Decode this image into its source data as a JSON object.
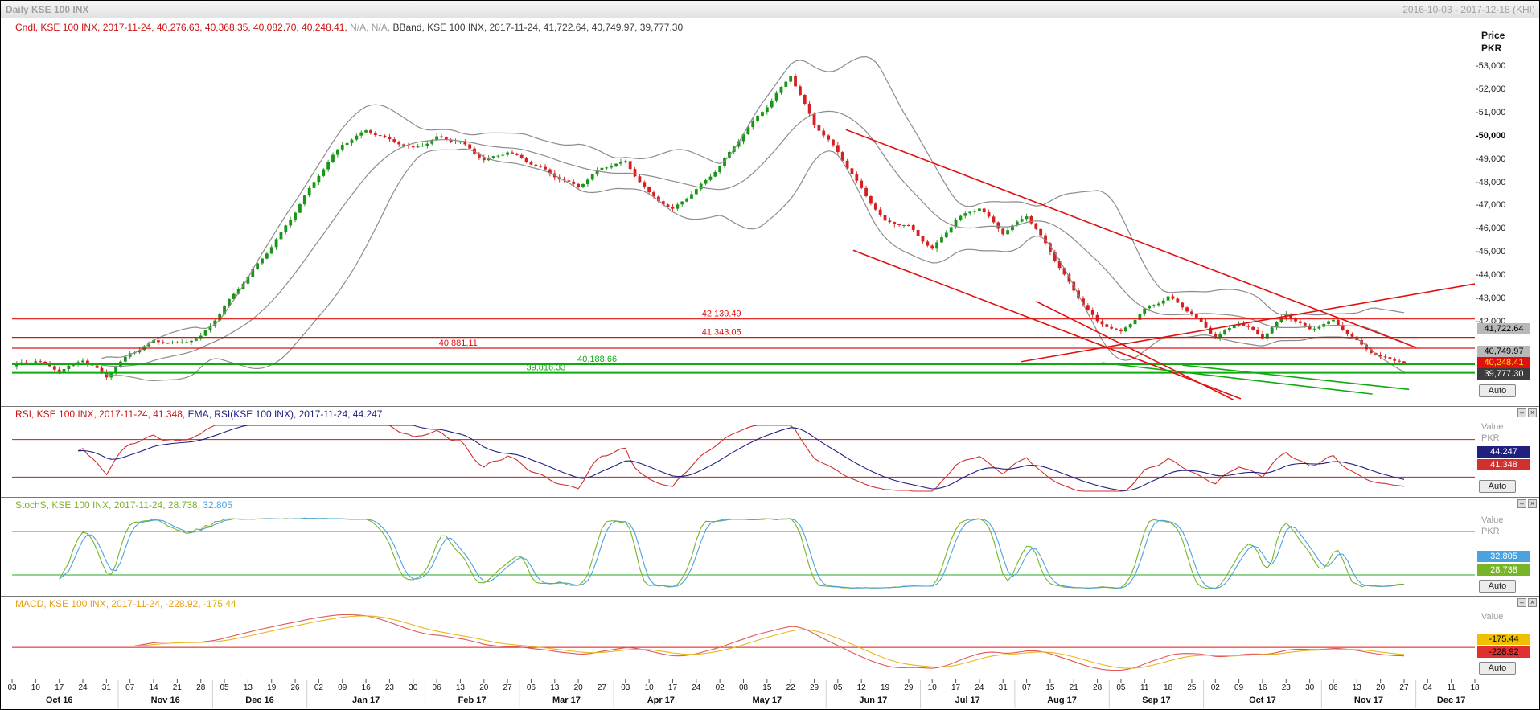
{
  "window": {
    "title": "Daily KSE 100 INX",
    "date_range": "2016-10-03 - 2017-12-18 (KHI)"
  },
  "sidebar": {
    "price_label": "Price",
    "unit_label": "PKR",
    "value_label": "Value",
    "auto_label": "Auto",
    "main_badges": [
      {
        "text": "41,722.64",
        "bg": "#b8b8b8",
        "fg": "#000000"
      },
      {
        "text": "40,749.97",
        "bg": "#b8b8b8",
        "fg": "#000000"
      },
      {
        "text": "40,248.41",
        "bg": "#e01010",
        "fg": "#ffe000"
      },
      {
        "text": "39,777.30",
        "bg": "#3c3c3c",
        "fg": "#ffffff"
      }
    ],
    "rsi_badges": [
      {
        "text": "44.247",
        "bg": "#202080",
        "fg": "#ffffff"
      },
      {
        "text": "41.348",
        "bg": "#d03030",
        "fg": "#ffffff"
      }
    ],
    "stoch_badges": [
      {
        "text": "32.805",
        "bg": "#4aa3e0",
        "fg": "#ffffff"
      },
      {
        "text": "28.738",
        "bg": "#78b428",
        "fg": "#ffffff"
      }
    ],
    "macd_badges": [
      {
        "text": "-175.44",
        "bg": "#f0c000",
        "fg": "#000000"
      },
      {
        "text": "-228.92",
        "bg": "#e03030",
        "fg": "#000000"
      }
    ],
    "minimize_icon": "–",
    "close_icon": "×"
  },
  "panels": {
    "main": {
      "legend_parts": [
        {
          "text": "Cndl, KSE 100 INX, 2017-11-24, 40,276.63, 40,368.35, 40,082.70, 40,248.41, ",
          "color": "#cc1414"
        },
        {
          "text": "N/A, N/A, ",
          "color": "#9a9a9a"
        },
        {
          "text": "BBand, KSE 100 INX, 2017-11-24, 41,722.64, 40,749.97, 39,777.30",
          "color": "#3c3c3c"
        }
      ]
    },
    "rsi": {
      "legend_parts": [
        {
          "text": "RSI, KSE 100 INX, 2017-11-24, 41.348, ",
          "color": "#cc1414"
        },
        {
          "text": "EMA, RSI(KSE 100 INX), 2017-11-24, 44.247",
          "color": "#202080"
        }
      ]
    },
    "stoch": {
      "legend_parts": [
        {
          "text": "StochS, KSE 100 INX, 2017-11-24, 28.738, ",
          "color": "#78b428"
        },
        {
          "text": "32.805",
          "color": "#4aa3e0"
        }
      ]
    },
    "macd": {
      "legend_parts": [
        {
          "text": "MACD, KSE 100 INX, 2017-11-24, -228.92, ",
          "color": "#e8a020"
        },
        {
          "text": "-175.44",
          "color": "#d8b400"
        }
      ]
    }
  },
  "xaxis": {
    "day_ticks": [
      "03",
      "10",
      "17",
      "24",
      "31",
      "07",
      "14",
      "21",
      "28",
      "05",
      "13",
      "19",
      "26",
      "02",
      "09",
      "16",
      "23",
      "30",
      "06",
      "13",
      "20",
      "27",
      "06",
      "13",
      "20",
      "27",
      "03",
      "10",
      "17",
      "24",
      "02",
      "08",
      "15",
      "22",
      "29",
      "05",
      "12",
      "19",
      "29",
      "10",
      "17",
      "24",
      "31",
      "07",
      "15",
      "21",
      "28",
      "05",
      "11",
      "18",
      "25",
      "02",
      "09",
      "16",
      "23",
      "30",
      "06",
      "13",
      "20",
      "27",
      "04",
      "11",
      "18"
    ],
    "months": [
      {
        "label": "Oct 16",
        "start": 0,
        "end": 4
      },
      {
        "label": "Nov 16",
        "start": 5,
        "end": 8
      },
      {
        "label": "Dec 16",
        "start": 9,
        "end": 12
      },
      {
        "label": "Jan 17",
        "start": 13,
        "end": 17
      },
      {
        "label": "Feb 17",
        "start": 18,
        "end": 21
      },
      {
        "label": "Mar 17",
        "start": 22,
        "end": 25
      },
      {
        "label": "Apr 17",
        "start": 26,
        "end": 29
      },
      {
        "label": "May 17",
        "start": 30,
        "end": 34
      },
      {
        "label": "Jun 17",
        "start": 35,
        "end": 38
      },
      {
        "label": "Jul 17",
        "start": 39,
        "end": 42
      },
      {
        "label": "Aug 17",
        "start": 43,
        "end": 46
      },
      {
        "label": "Sep 17",
        "start": 47,
        "end": 50
      },
      {
        "label": "Oct 17",
        "start": 51,
        "end": 55
      },
      {
        "label": "Nov 17",
        "start": 56,
        "end": 59
      },
      {
        "label": "Dec 17",
        "start": 60,
        "end": 62
      }
    ]
  },
  "chart_data": [
    {
      "type": "candlestick",
      "panel": "main",
      "title": "Cndl, KSE 100 INX",
      "interval": "Daily",
      "last_date": "2017-11-24",
      "last_ohlc": {
        "open": 40276.63,
        "high": 40368.35,
        "low": 40082.7,
        "close": 40248.41
      },
      "bband_last": {
        "upper": 41722.64,
        "mid": 40749.97,
        "lower": 39777.3
      },
      "ylim": [
        38800,
        54400
      ],
      "yticks": [
        {
          "v": 53000,
          "label": "53,000"
        },
        {
          "v": 52000,
          "label": "52,000"
        },
        {
          "v": 51000,
          "label": "51,000"
        },
        {
          "v": 50000,
          "label": "50,000",
          "bold": true
        },
        {
          "v": 49000,
          "label": "49,000"
        },
        {
          "v": 48000,
          "label": "48,000"
        },
        {
          "v": 47000,
          "label": "47,000"
        },
        {
          "v": 46000,
          "label": "46,000"
        },
        {
          "v": 45000,
          "label": "45,000"
        },
        {
          "v": 44000,
          "label": "44,000"
        },
        {
          "v": 43000,
          "label": "43,000"
        },
        {
          "v": 42000,
          "label": "42,000"
        }
      ],
      "weekly_closes": [
        40100,
        40300,
        39950,
        40400,
        39600,
        40700,
        41200,
        41000,
        41400,
        42700,
        43900,
        45300,
        46800,
        48300,
        49700,
        50300,
        49800,
        49500,
        50000,
        49700,
        49000,
        49400,
        48800,
        48300,
        47900,
        48600,
        48900,
        47600,
        46800,
        47700,
        48800,
        50100,
        51300,
        52700,
        50500,
        49300,
        47800,
        46300,
        46100,
        45200,
        46400,
        46900,
        45900,
        46600,
        45000,
        43400,
        42000,
        41500,
        42600,
        43100,
        42300,
        41400,
        42000,
        41300,
        42400,
        41700,
        42000,
        41200,
        40500,
        40248
      ],
      "hlines": [
        {
          "value": 42139.49,
          "label": "42,139.49",
          "color": "#e01010",
          "label_x": 0.485,
          "width": 1.2
        },
        {
          "value": 41343.05,
          "label": "41,343.05",
          "color": "#e01010",
          "label_x": 0.485,
          "width": 1.2
        },
        {
          "value": 40881.11,
          "label": "40,881.11",
          "color": "#e01010",
          "label_x": 0.305,
          "width": 1.2
        },
        {
          "value": 40188.66,
          "label": "40,188.66",
          "color": "#0faa0f",
          "label_x": 0.4,
          "width": 2
        },
        {
          "value": 39816.33,
          "label": "39,816.33",
          "color": "#0faa0f",
          "label_x": 0.365,
          "width": 2
        }
      ],
      "trendlines": [
        {
          "x1": 0.57,
          "v1": 50300,
          "x2": 0.96,
          "v2": 40900,
          "color": "#e01010"
        },
        {
          "x1": 0.575,
          "v1": 45100,
          "x2": 0.84,
          "v2": 38700,
          "color": "#e01010"
        },
        {
          "x1": 0.7,
          "v1": 42900,
          "x2": 0.835,
          "v2": 38650,
          "color": "#e01010"
        },
        {
          "x1": 0.69,
          "v1": 40300,
          "x2": 1.0,
          "v2": 43650,
          "color": "#e01010"
        },
        {
          "x1": 0.745,
          "v1": 40250,
          "x2": 0.93,
          "v2": 38900,
          "color": "#0faa0f"
        },
        {
          "x1": 0.8,
          "v1": 40150,
          "x2": 0.955,
          "v2": 39100,
          "color": "#0faa0f"
        }
      ],
      "colors": {
        "up": "#189618",
        "down": "#d81e1e",
        "bollinger": "#8c8c8c"
      }
    },
    {
      "type": "line",
      "panel": "rsi",
      "series": [
        {
          "name": "RSI(14)",
          "color": "#d03030",
          "last": 41.348,
          "derived": "rsi14_of_close"
        },
        {
          "name": "EMA(RSI)",
          "color": "#202080",
          "last": 44.247,
          "derived": "ema14_of_rsi"
        }
      ],
      "range": [
        15,
        85
      ],
      "hlines": [
        {
          "value": 70,
          "color": "#e01010"
        },
        {
          "value": 30,
          "color": "#e01010"
        }
      ]
    },
    {
      "type": "line",
      "panel": "stoch",
      "series": [
        {
          "name": "%K",
          "color": "#78b428",
          "last": 28.738,
          "derived": "stoch_k_10_3"
        },
        {
          "name": "%D",
          "color": "#4aa3e0",
          "last": 32.805,
          "derived": "stoch_d_3"
        }
      ],
      "range": [
        0,
        100
      ],
      "hlines": [
        {
          "value": 80,
          "color": "#22aa22"
        },
        {
          "value": 20,
          "color": "#22aa22"
        }
      ]
    },
    {
      "type": "line",
      "panel": "macd",
      "series": [
        {
          "name": "MACD(12,26)",
          "color": "#e05858",
          "last": -228.92,
          "derived": "macd_12_26"
        },
        {
          "name": "Signal(9)",
          "color": "#e8b820",
          "last": -175.44,
          "derived": "macd_signal_9"
        }
      ],
      "range": "auto",
      "hlines": [
        {
          "value": 0,
          "color": "#e01010"
        }
      ]
    }
  ]
}
